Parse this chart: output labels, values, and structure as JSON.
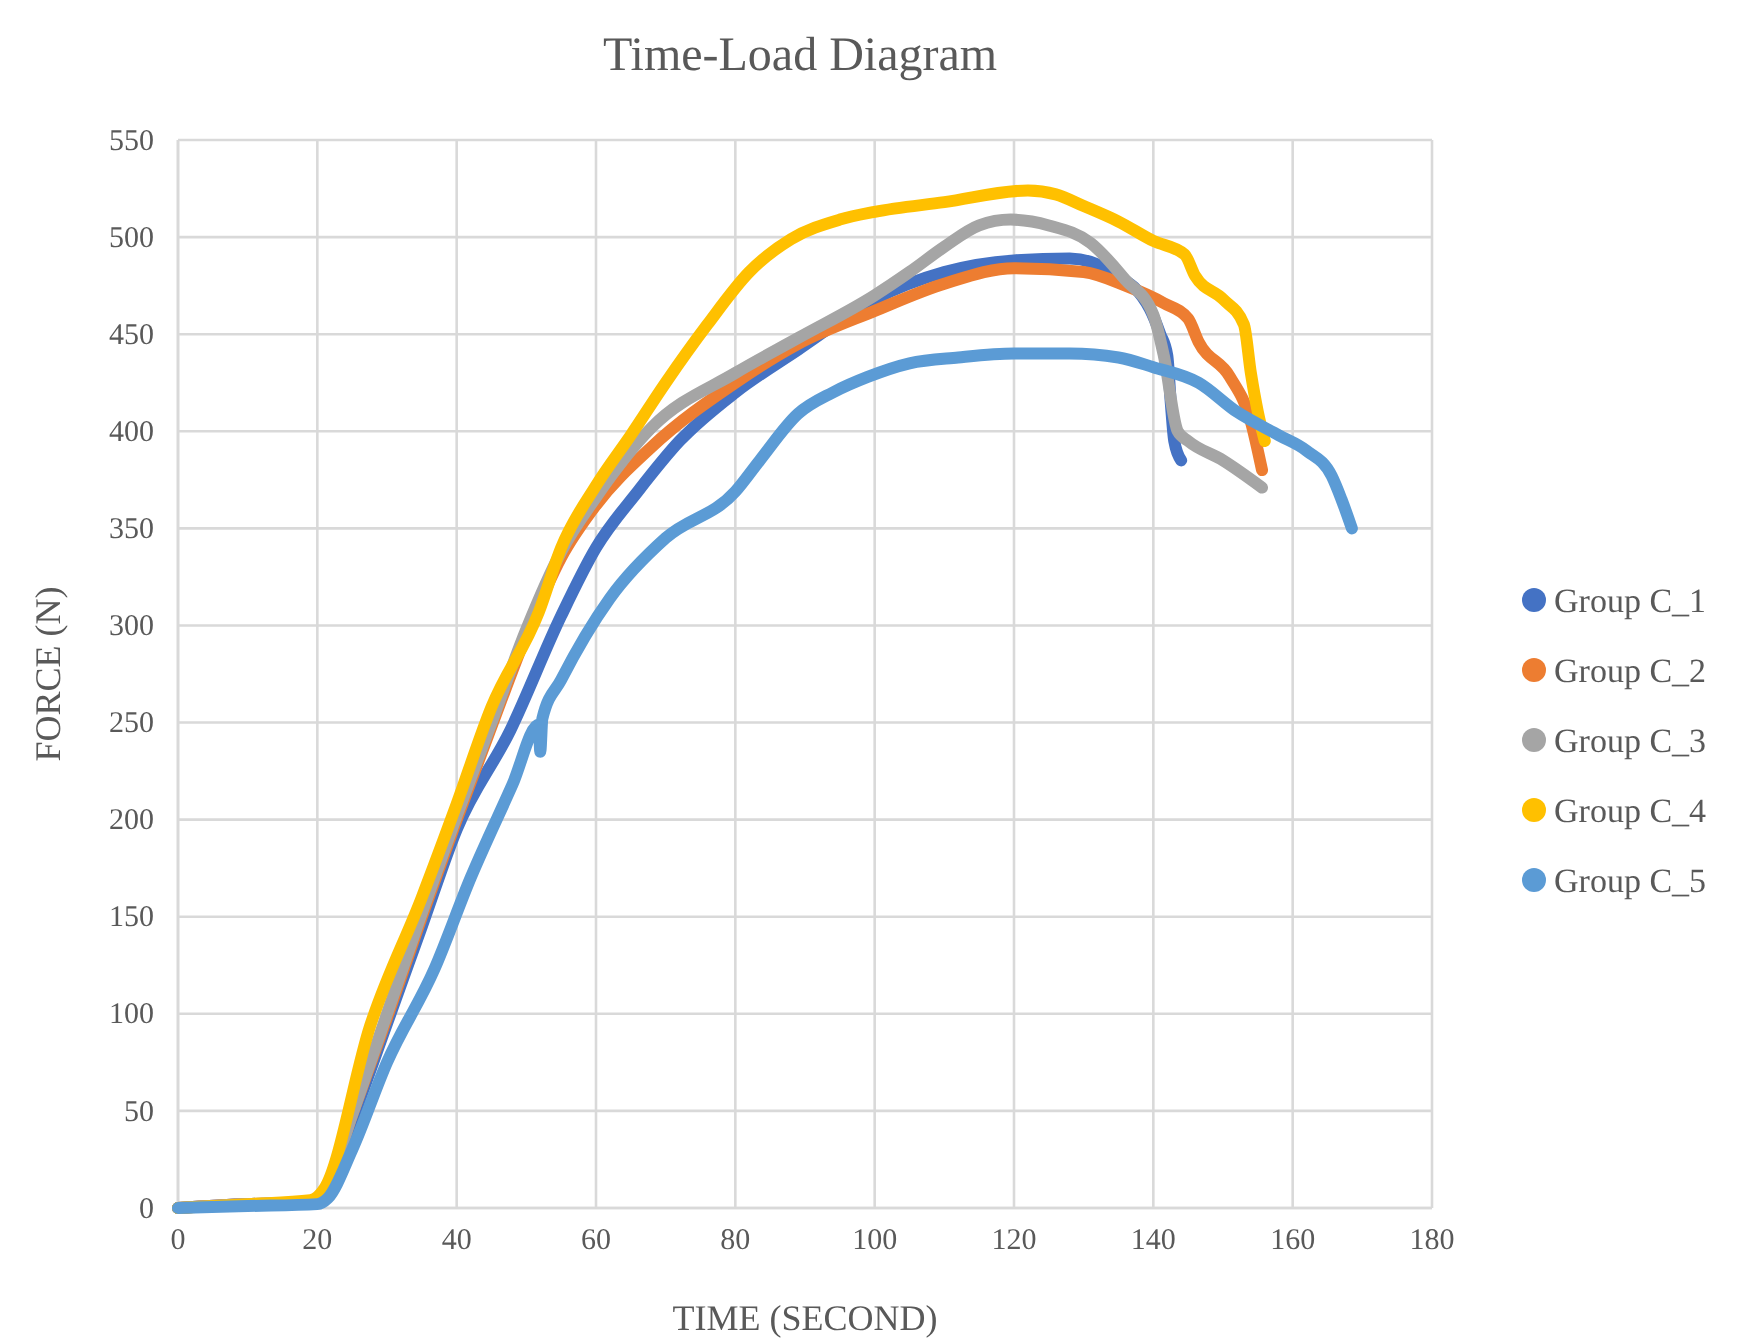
{
  "chart_data": {
    "type": "line",
    "title": "Time-Load Diagram",
    "xlabel": "TIME (SECOND)",
    "ylabel": "FORCE (N)",
    "xlim": [
      0,
      180
    ],
    "xticks": [
      0,
      20,
      40,
      60,
      80,
      100,
      120,
      140,
      160,
      180
    ],
    "ylim": [
      0,
      550
    ],
    "yticks": [
      0,
      50,
      100,
      150,
      200,
      250,
      300,
      350,
      400,
      450,
      500,
      550
    ],
    "grid": true,
    "legend": "right",
    "series": [
      {
        "name": "Group C_1",
        "color": "#4472c4",
        "x": [
          0,
          10,
          19,
          21,
          25,
          30,
          35,
          40,
          47.7,
          55,
          60,
          66,
          72,
          80,
          89,
          100,
          110,
          120,
          128,
          134,
          139.5,
          141,
          142,
          142.5,
          143,
          144
        ],
        "values": [
          0,
          2,
          3,
          8,
          45,
          95,
          145,
          195,
          246,
          305,
          340,
          369,
          395,
          420,
          442,
          468,
          482,
          488,
          489,
          482,
          463,
          450,
          439,
          415,
          395,
          385
        ]
      },
      {
        "name": "Group C_2",
        "color": "#ed7d31",
        "x": [
          0,
          10,
          19,
          21,
          25,
          30,
          35,
          40,
          45,
          50,
          55,
          60,
          68,
          80,
          89,
          100,
          110,
          120,
          130,
          136,
          141.5,
          145,
          146.5,
          151,
          154,
          155.6
        ],
        "values": [
          0,
          2,
          3,
          8,
          48,
          98,
          150,
          200,
          248,
          295,
          335,
          362,
          392,
          425,
          445,
          462,
          476,
          484,
          482,
          475,
          466,
          458,
          446,
          428,
          405,
          380
        ]
      },
      {
        "name": "Group C_3",
        "color": "#a5a5a5",
        "x": [
          0,
          10,
          19,
          21,
          25,
          30,
          35,
          40,
          45,
          50,
          55,
          60,
          68,
          80,
          89,
          100,
          105,
          110,
          115,
          119.5,
          125,
          131,
          136,
          140,
          141.5,
          143.5,
          145,
          150,
          155.6
        ],
        "values": [
          0,
          2,
          3,
          8,
          48,
          100,
          152,
          202,
          250,
          298,
          338,
          366,
          402,
          430,
          448,
          470,
          482,
          495,
          506,
          509,
          506,
          497,
          478,
          460,
          439,
          400,
          395,
          385,
          371
        ]
      },
      {
        "name": "Group C_4",
        "color": "#ffc000",
        "x": [
          0,
          10,
          19,
          21,
          27.6,
          35,
          40,
          45,
          51.8,
          55,
          60,
          65,
          70,
          76,
          82,
          88,
          95,
          100,
          110,
          122,
          126,
          130,
          135,
          140,
          144.5,
          146,
          150,
          153,
          154,
          155,
          156
        ],
        "values": [
          0,
          2,
          4,
          10,
          94,
          160,
          208,
          258,
          307,
          340,
          372,
          398,
          425,
          455,
          482,
          499,
          509,
          513,
          518,
          524,
          522,
          516,
          508,
          498,
          491,
          480,
          468,
          455,
          430,
          410,
          395
        ]
      },
      {
        "name": "Group C_5",
        "color": "#5b9bd5",
        "x": [
          0,
          10,
          20,
          21.5,
          25,
          30,
          36.8,
          42,
          48,
          51.8,
          52,
          52.3,
          55,
          62,
          70,
          80,
          83.5,
          89,
          94,
          99,
          105,
          112,
          120,
          128,
          135,
          140,
          146.5,
          152,
          158,
          162,
          165.6,
          167,
          168.5
        ],
        "values": [
          0,
          1,
          2,
          5,
          30,
          75,
          123,
          170,
          218,
          249,
          235,
          252,
          272,
          314,
          345,
          369,
          385,
          409,
          420,
          428,
          435,
          438,
          440,
          440,
          438,
          433,
          425,
          410,
          398,
          390,
          377,
          365,
          350
        ]
      }
    ]
  }
}
